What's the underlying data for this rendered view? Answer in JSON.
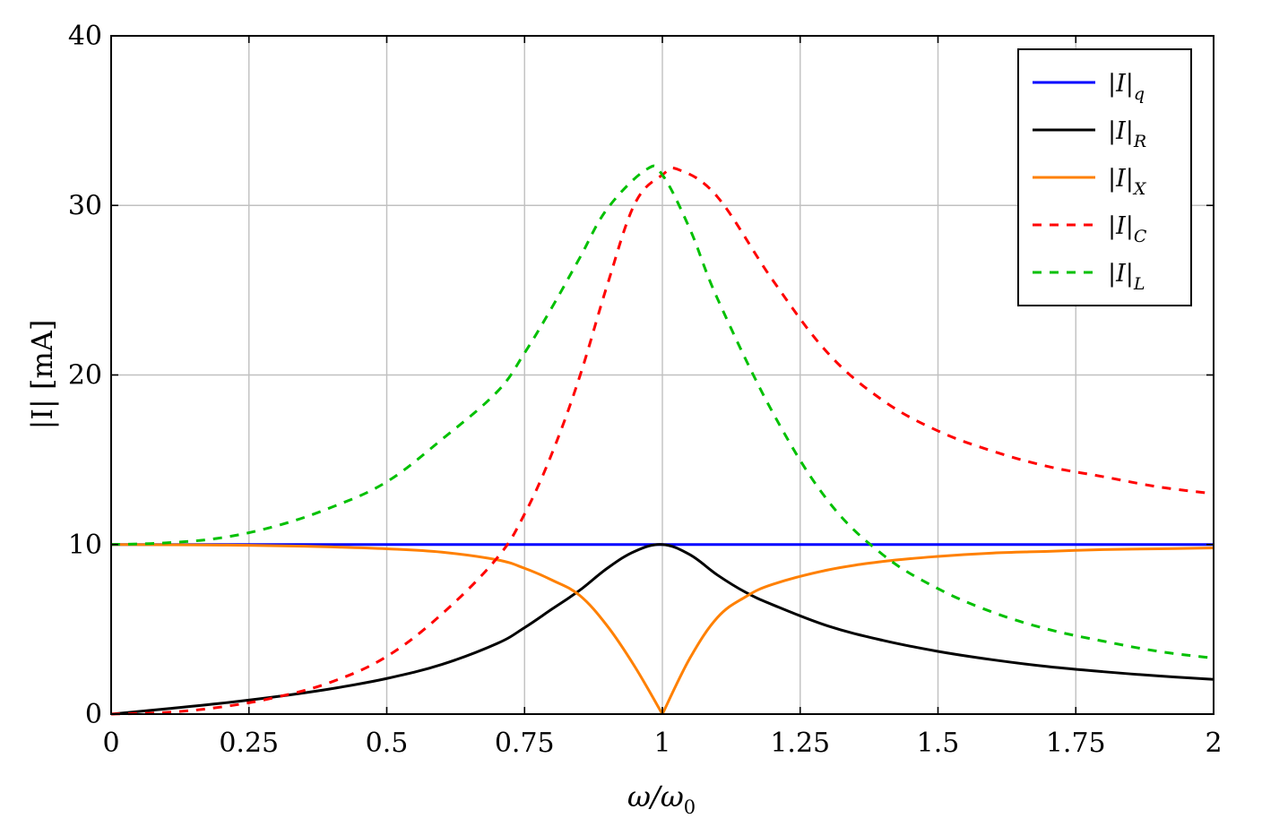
{
  "chart_data": {
    "type": "line",
    "title": "",
    "xlabel": "ω/ω",
    "xlabel_sub": "0",
    "ylabel": "|I| [mA]",
    "xlim": [
      0,
      2
    ],
    "ylim": [
      0,
      40
    ],
    "grid": true,
    "legend_position": "top-right",
    "xticks": [
      0,
      0.25,
      0.5,
      0.75,
      1,
      1.25,
      1.5,
      1.75,
      2
    ],
    "xtick_labels": [
      "0",
      "0.25",
      "0.5",
      "0.75",
      "1",
      "1.25",
      "1.5",
      "1.75",
      "2"
    ],
    "yticks": [
      0,
      10,
      20,
      30,
      40
    ],
    "ytick_labels": [
      "0",
      "10",
      "20",
      "30",
      "40"
    ],
    "series": [
      {
        "name": "|I|",
        "name_sub": "q",
        "color": "#0000ff",
        "dash": "solid",
        "x": [
          0,
          2
        ],
        "y": [
          10,
          10
        ]
      },
      {
        "name": "|I|",
        "name_sub": "R",
        "color": "#000000",
        "dash": "solid",
        "x": [
          0,
          0.1,
          0.2,
          0.3,
          0.4,
          0.5,
          0.6,
          0.7,
          0.75,
          0.8,
          0.85,
          0.9,
          0.95,
          1.0,
          1.05,
          1.1,
          1.15,
          1.2,
          1.3,
          1.4,
          1.5,
          1.6,
          1.7,
          1.8,
          1.9,
          2.0
        ],
        "y": [
          0,
          0.31,
          0.64,
          1.03,
          1.5,
          2.1,
          2.93,
          4.16,
          5.1,
          6.2,
          7.3,
          8.6,
          9.6,
          10.0,
          9.4,
          8.2,
          7.2,
          6.45,
          5.2,
          4.35,
          3.7,
          3.2,
          2.8,
          2.5,
          2.25,
          2.05
        ]
      },
      {
        "name": "|I|",
        "name_sub": "X",
        "color": "#ff8000",
        "dash": "solid",
        "x": [
          0,
          0.1,
          0.2,
          0.3,
          0.4,
          0.5,
          0.6,
          0.7,
          0.75,
          0.8,
          0.85,
          0.9,
          0.95,
          1.0,
          1.05,
          1.1,
          1.15,
          1.2,
          1.3,
          1.4,
          1.5,
          1.6,
          1.7,
          1.8,
          1.9,
          2.0
        ],
        "y": [
          10,
          9.99,
          9.97,
          9.93,
          9.86,
          9.75,
          9.55,
          9.1,
          8.6,
          7.9,
          7.0,
          5.2,
          2.8,
          0,
          3.3,
          5.7,
          6.9,
          7.65,
          8.5,
          9.0,
          9.3,
          9.5,
          9.6,
          9.7,
          9.75,
          9.8
        ]
      },
      {
        "name": "|I|",
        "name_sub": "C",
        "color": "#ff0000",
        "dash": "dashed",
        "x": [
          0,
          0.1,
          0.2,
          0.3,
          0.4,
          0.5,
          0.6,
          0.7,
          0.75,
          0.8,
          0.85,
          0.9,
          0.95,
          1.0,
          1.03,
          1.1,
          1.2,
          1.3,
          1.4,
          1.5,
          1.6,
          1.7,
          1.8,
          1.9,
          2.0
        ],
        "y": [
          0,
          0.1,
          0.42,
          1.0,
          1.9,
          3.4,
          5.9,
          9.2,
          11.8,
          15.4,
          19.9,
          25.3,
          30.1,
          31.8,
          32.1,
          30.5,
          25.6,
          21.3,
          18.5,
          16.7,
          15.5,
          14.6,
          14.0,
          13.4,
          13.0
        ]
      },
      {
        "name": "|I|",
        "name_sub": "L",
        "color": "#00c000",
        "dash": "dashed",
        "x": [
          0,
          0.1,
          0.2,
          0.3,
          0.4,
          0.5,
          0.6,
          0.7,
          0.75,
          0.8,
          0.85,
          0.9,
          0.97,
          1.0,
          1.05,
          1.1,
          1.2,
          1.3,
          1.4,
          1.5,
          1.6,
          1.7,
          1.8,
          1.9,
          2.0
        ],
        "y": [
          10,
          10.1,
          10.4,
          11.1,
          12.2,
          13.7,
          16.2,
          19.0,
          21.3,
          24.0,
          26.9,
          29.8,
          32.1,
          31.8,
          28.6,
          24.5,
          17.8,
          12.6,
          9.4,
          7.4,
          6.0,
          5.0,
          4.3,
          3.7,
          3.3
        ]
      }
    ]
  }
}
